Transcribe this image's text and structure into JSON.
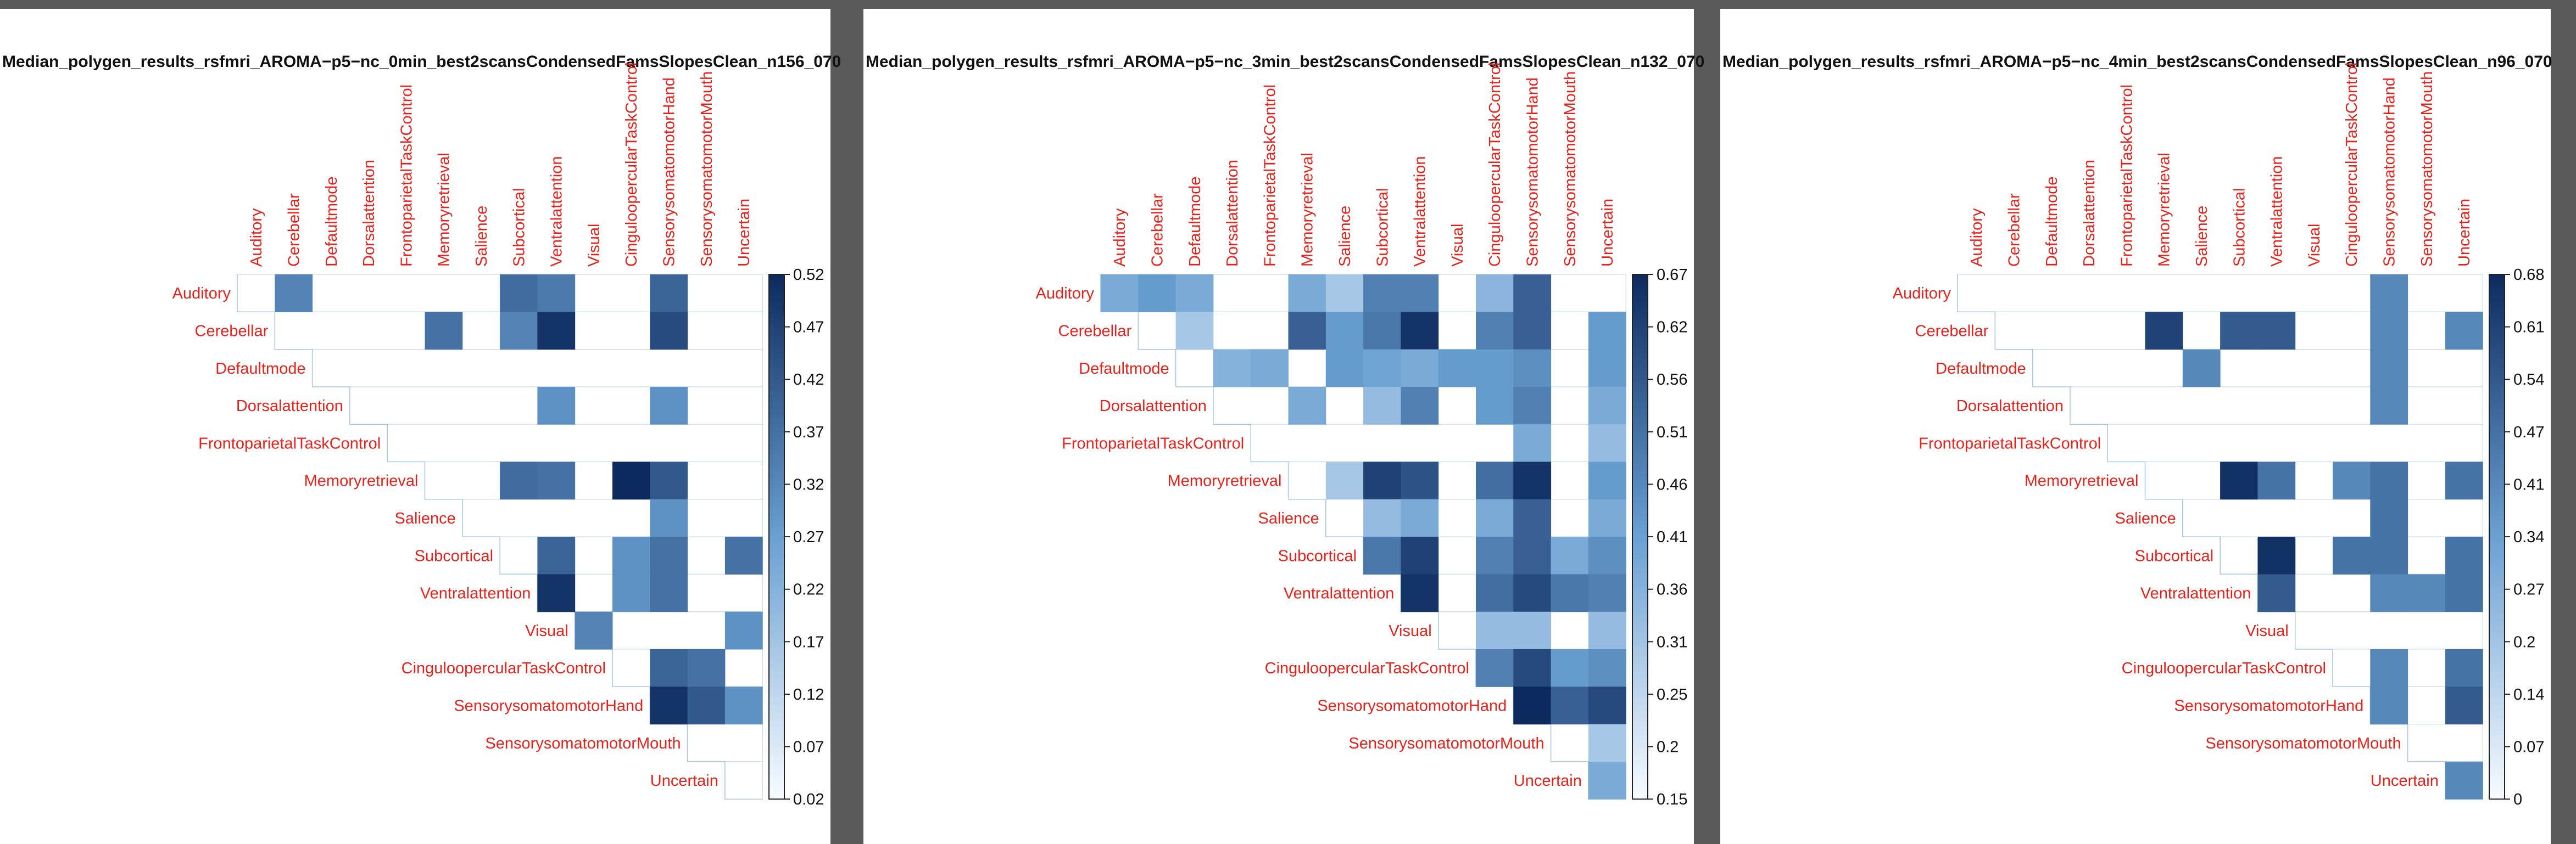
{
  "colors": {
    "label": "#e8221b",
    "low": "#ffffff",
    "high": "#0d2a5e",
    "grid": "#c9dcee"
  },
  "chart_data": [
    {
      "type": "heatmap",
      "title": "Median_polygen_results_rsfmri_AROMA−p5−nc_0min_best2scansCondensedFamsSlopesClean_n156_070",
      "labels": [
        "Auditory",
        "Cerebellar",
        "Defaultmode",
        "Dorsalattention",
        "FrontoparietalTaskControl",
        "Memoryretrieval",
        "Salience",
        "Subcortical",
        "Ventralattention",
        "Visual",
        "CinguloopercularTaskControl",
        "SensorysomatomotorHand",
        "SensorysomatomotorMouth",
        "Uncertain"
      ],
      "layout": "upper-triangle",
      "colorbar_ticks": [
        "0.52",
        "0.47",
        "0.42",
        "0.37",
        "0.32",
        "0.27",
        "0.22",
        "0.17",
        "0.12",
        "0.07",
        "0.02"
      ],
      "vmin": 0.02,
      "vmax": 0.52,
      "cells": [
        {
          "row": "Auditory",
          "col": "Cerebellar",
          "value": 0.33
        },
        {
          "row": "Auditory",
          "col": "Subcortical",
          "value": 0.38
        },
        {
          "row": "Auditory",
          "col": "Ventralattention",
          "value": 0.35
        },
        {
          "row": "Auditory",
          "col": "SensorysomatomotorHand",
          "value": 0.4
        },
        {
          "row": "Cerebellar",
          "col": "Memoryretrieval",
          "value": 0.37
        },
        {
          "row": "Cerebellar",
          "col": "Subcortical",
          "value": 0.33
        },
        {
          "row": "Cerebellar",
          "col": "Ventralattention",
          "value": 0.5
        },
        {
          "row": "Cerebellar",
          "col": "SensorysomatomotorHand",
          "value": 0.45
        },
        {
          "row": "Dorsalattention",
          "col": "Ventralattention",
          "value": 0.3
        },
        {
          "row": "Dorsalattention",
          "col": "SensorysomatomotorHand",
          "value": 0.3
        },
        {
          "row": "Memoryretrieval",
          "col": "Subcortical",
          "value": 0.38
        },
        {
          "row": "Memoryretrieval",
          "col": "Ventralattention",
          "value": 0.37
        },
        {
          "row": "Memoryretrieval",
          "col": "CinguloopercularTaskControl",
          "value": 0.52
        },
        {
          "row": "Memoryretrieval",
          "col": "SensorysomatomotorHand",
          "value": 0.42
        },
        {
          "row": "Salience",
          "col": "SensorysomatomotorHand",
          "value": 0.3
        },
        {
          "row": "Subcortical",
          "col": "Ventralattention",
          "value": 0.4
        },
        {
          "row": "Subcortical",
          "col": "CinguloopercularTaskControl",
          "value": 0.3
        },
        {
          "row": "Subcortical",
          "col": "SensorysomatomotorHand",
          "value": 0.37
        },
        {
          "row": "Subcortical",
          "col": "Uncertain",
          "value": 0.37
        },
        {
          "row": "Ventralattention",
          "col": "Ventralattention",
          "value": 0.5
        },
        {
          "row": "Ventralattention",
          "col": "CinguloopercularTaskControl",
          "value": 0.3
        },
        {
          "row": "Ventralattention",
          "col": "SensorysomatomotorHand",
          "value": 0.37
        },
        {
          "row": "Visual",
          "col": "Visual",
          "value": 0.33
        },
        {
          "row": "Visual",
          "col": "Uncertain",
          "value": 0.3
        },
        {
          "row": "CinguloopercularTaskControl",
          "col": "SensorysomatomotorHand",
          "value": 0.4
        },
        {
          "row": "CinguloopercularTaskControl",
          "col": "SensorysomatomotorMouth",
          "value": 0.37
        },
        {
          "row": "SensorysomatomotorHand",
          "col": "SensorysomatomotorHand",
          "value": 0.5
        },
        {
          "row": "SensorysomatomotorHand",
          "col": "SensorysomatomotorMouth",
          "value": 0.42
        },
        {
          "row": "SensorysomatomotorHand",
          "col": "Uncertain",
          "value": 0.3
        }
      ]
    },
    {
      "type": "heatmap",
      "title": "Median_polygen_results_rsfmri_AROMA−p5−nc_3min_best2scansCondensedFamsSlopesClean_n132_070",
      "labels": [
        "Auditory",
        "Cerebellar",
        "Defaultmode",
        "Dorsalattention",
        "FrontoparietalTaskControl",
        "Memoryretrieval",
        "Salience",
        "Subcortical",
        "Ventralattention",
        "Visual",
        "CinguloopercularTaskControl",
        "SensorysomatomotorHand",
        "SensorysomatomotorMouth",
        "Uncertain"
      ],
      "layout": "upper-triangle",
      "colorbar_ticks": [
        "0.67",
        "0.62",
        "0.56",
        "0.51",
        "0.46",
        "0.41",
        "0.36",
        "0.31",
        "0.25",
        "0.2",
        "0.15"
      ],
      "vmin": 0.15,
      "vmax": 0.67,
      "cells": [
        {
          "row": "Auditory",
          "col": "Auditory",
          "value": 0.38
        },
        {
          "row": "Auditory",
          "col": "Cerebellar",
          "value": 0.42
        },
        {
          "row": "Auditory",
          "col": "Defaultmode",
          "value": 0.38
        },
        {
          "row": "Auditory",
          "col": "Memoryretrieval",
          "value": 0.38
        },
        {
          "row": "Auditory",
          "col": "Salience",
          "value": 0.3
        },
        {
          "row": "Auditory",
          "col": "Subcortical",
          "value": 0.48
        },
        {
          "row": "Auditory",
          "col": "Ventralattention",
          "value": 0.48
        },
        {
          "row": "Auditory",
          "col": "CinguloopercularTaskControl",
          "value": 0.35
        },
        {
          "row": "Auditory",
          "col": "SensorysomatomotorHand",
          "value": 0.55
        },
        {
          "row": "Cerebellar",
          "col": "Defaultmode",
          "value": 0.3
        },
        {
          "row": "Cerebellar",
          "col": "Memoryretrieval",
          "value": 0.55
        },
        {
          "row": "Cerebellar",
          "col": "Salience",
          "value": 0.42
        },
        {
          "row": "Cerebellar",
          "col": "Subcortical",
          "value": 0.5
        },
        {
          "row": "Cerebellar",
          "col": "Ventralattention",
          "value": 0.65
        },
        {
          "row": "Cerebellar",
          "col": "CinguloopercularTaskControl",
          "value": 0.48
        },
        {
          "row": "Cerebellar",
          "col": "SensorysomatomotorHand",
          "value": 0.55
        },
        {
          "row": "Cerebellar",
          "col": "Uncertain",
          "value": 0.42
        },
        {
          "row": "Defaultmode",
          "col": "Dorsalattention",
          "value": 0.36
        },
        {
          "row": "Defaultmode",
          "col": "FrontoparietalTaskControl",
          "value": 0.38
        },
        {
          "row": "Defaultmode",
          "col": "Salience",
          "value": 0.42
        },
        {
          "row": "Defaultmode",
          "col": "Subcortical",
          "value": 0.4
        },
        {
          "row": "Defaultmode",
          "col": "Ventralattention",
          "value": 0.38
        },
        {
          "row": "Defaultmode",
          "col": "Visual",
          "value": 0.42
        },
        {
          "row": "Defaultmode",
          "col": "CinguloopercularTaskControl",
          "value": 0.42
        },
        {
          "row": "Defaultmode",
          "col": "SensorysomatomotorHand",
          "value": 0.45
        },
        {
          "row": "Defaultmode",
          "col": "Uncertain",
          "value": 0.42
        },
        {
          "row": "Dorsalattention",
          "col": "Memoryretrieval",
          "value": 0.38
        },
        {
          "row": "Dorsalattention",
          "col": "Subcortical",
          "value": 0.33
        },
        {
          "row": "Dorsalattention",
          "col": "Ventralattention",
          "value": 0.48
        },
        {
          "row": "Dorsalattention",
          "col": "CinguloopercularTaskControl",
          "value": 0.42
        },
        {
          "row": "Dorsalattention",
          "col": "SensorysomatomotorHand",
          "value": 0.48
        },
        {
          "row": "Dorsalattention",
          "col": "Uncertain",
          "value": 0.38
        },
        {
          "row": "FrontoparietalTaskControl",
          "col": "SensorysomatomotorHand",
          "value": 0.38
        },
        {
          "row": "FrontoparietalTaskControl",
          "col": "Uncertain",
          "value": 0.33
        },
        {
          "row": "Memoryretrieval",
          "col": "Salience",
          "value": 0.3
        },
        {
          "row": "Memoryretrieval",
          "col": "Subcortical",
          "value": 0.62
        },
        {
          "row": "Memoryretrieval",
          "col": "Ventralattention",
          "value": 0.58
        },
        {
          "row": "Memoryretrieval",
          "col": "CinguloopercularTaskControl",
          "value": 0.52
        },
        {
          "row": "Memoryretrieval",
          "col": "SensorysomatomotorHand",
          "value": 0.65
        },
        {
          "row": "Memoryretrieval",
          "col": "Uncertain",
          "value": 0.42
        },
        {
          "row": "Salience",
          "col": "Subcortical",
          "value": 0.33
        },
        {
          "row": "Salience",
          "col": "Ventralattention",
          "value": 0.38
        },
        {
          "row": "Salience",
          "col": "CinguloopercularTaskControl",
          "value": 0.38
        },
        {
          "row": "Salience",
          "col": "SensorysomatomotorHand",
          "value": 0.55
        },
        {
          "row": "Salience",
          "col": "Uncertain",
          "value": 0.38
        },
        {
          "row": "Subcortical",
          "col": "Subcortical",
          "value": 0.5
        },
        {
          "row": "Subcortical",
          "col": "Ventralattention",
          "value": 0.62
        },
        {
          "row": "Subcortical",
          "col": "CinguloopercularTaskControl",
          "value": 0.48
        },
        {
          "row": "Subcortical",
          "col": "SensorysomatomotorHand",
          "value": 0.55
        },
        {
          "row": "Subcortical",
          "col": "SensorysomatomotorMouth",
          "value": 0.38
        },
        {
          "row": "Subcortical",
          "col": "Uncertain",
          "value": 0.45
        },
        {
          "row": "Ventralattention",
          "col": "Ventralattention",
          "value": 0.65
        },
        {
          "row": "Ventralattention",
          "col": "CinguloopercularTaskControl",
          "value": 0.52
        },
        {
          "row": "Ventralattention",
          "col": "SensorysomatomotorHand",
          "value": 0.6
        },
        {
          "row": "Ventralattention",
          "col": "SensorysomatomotorMouth",
          "value": 0.5
        },
        {
          "row": "Ventralattention",
          "col": "Uncertain",
          "value": 0.48
        },
        {
          "row": "Visual",
          "col": "CinguloopercularTaskControl",
          "value": 0.33
        },
        {
          "row": "Visual",
          "col": "SensorysomatomotorHand",
          "value": 0.33
        },
        {
          "row": "Visual",
          "col": "Uncertain",
          "value": 0.33
        },
        {
          "row": "CinguloopercularTaskControl",
          "col": "CinguloopercularTaskControl",
          "value": 0.48
        },
        {
          "row": "CinguloopercularTaskControl",
          "col": "SensorysomatomotorHand",
          "value": 0.6
        },
        {
          "row": "CinguloopercularTaskControl",
          "col": "SensorysomatomotorMouth",
          "value": 0.42
        },
        {
          "row": "CinguloopercularTaskControl",
          "col": "Uncertain",
          "value": 0.45
        },
        {
          "row": "SensorysomatomotorHand",
          "col": "SensorysomatomotorHand",
          "value": 0.67
        },
        {
          "row": "SensorysomatomotorHand",
          "col": "SensorysomatomotorMouth",
          "value": 0.55
        },
        {
          "row": "SensorysomatomotorHand",
          "col": "Uncertain",
          "value": 0.6
        },
        {
          "row": "SensorysomatomotorMouth",
          "col": "Uncertain",
          "value": 0.3
        },
        {
          "row": "Uncertain",
          "col": "Uncertain",
          "value": 0.38
        }
      ]
    },
    {
      "type": "heatmap",
      "title": "Median_polygen_results_rsfmri_AROMA−p5−nc_4min_best2scansCondensedFamsSlopesClean_n96_070",
      "labels": [
        "Auditory",
        "Cerebellar",
        "Defaultmode",
        "Dorsalattention",
        "FrontoparietalTaskControl",
        "Memoryretrieval",
        "Salience",
        "Subcortical",
        "Ventralattention",
        "Visual",
        "CinguloopercularTaskControl",
        "SensorysomatomotorHand",
        "SensorysomatomotorMouth",
        "Uncertain"
      ],
      "layout": "upper-triangle",
      "colorbar_ticks": [
        "0.68",
        "0.61",
        "0.54",
        "0.47",
        "0.41",
        "0.34",
        "0.27",
        "0.2",
        "0.14",
        "0.07",
        "0"
      ],
      "vmin": 0,
      "vmax": 0.68,
      "cells": [
        {
          "row": "Auditory",
          "col": "SensorysomatomotorHand",
          "value": 0.41
        },
        {
          "row": "Cerebellar",
          "col": "Memoryretrieval",
          "value": 0.61
        },
        {
          "row": "Cerebellar",
          "col": "Subcortical",
          "value": 0.54
        },
        {
          "row": "Cerebellar",
          "col": "Ventralattention",
          "value": 0.54
        },
        {
          "row": "Cerebellar",
          "col": "SensorysomatomotorHand",
          "value": 0.41
        },
        {
          "row": "Cerebellar",
          "col": "Uncertain",
          "value": 0.41
        },
        {
          "row": "Defaultmode",
          "col": "Salience",
          "value": 0.41
        },
        {
          "row": "Defaultmode",
          "col": "SensorysomatomotorHand",
          "value": 0.41
        },
        {
          "row": "Dorsalattention",
          "col": "SensorysomatomotorHand",
          "value": 0.41
        },
        {
          "row": "Memoryretrieval",
          "col": "Subcortical",
          "value": 0.66
        },
        {
          "row": "Memoryretrieval",
          "col": "Ventralattention",
          "value": 0.47
        },
        {
          "row": "Memoryretrieval",
          "col": "CinguloopercularTaskControl",
          "value": 0.41
        },
        {
          "row": "Memoryretrieval",
          "col": "SensorysomatomotorHand",
          "value": 0.47
        },
        {
          "row": "Memoryretrieval",
          "col": "Uncertain",
          "value": 0.47
        },
        {
          "row": "Salience",
          "col": "SensorysomatomotorHand",
          "value": 0.47
        },
        {
          "row": "Subcortical",
          "col": "Ventralattention",
          "value": 0.66
        },
        {
          "row": "Subcortical",
          "col": "CinguloopercularTaskControl",
          "value": 0.47
        },
        {
          "row": "Subcortical",
          "col": "SensorysomatomotorHand",
          "value": 0.47
        },
        {
          "row": "Subcortical",
          "col": "Uncertain",
          "value": 0.47
        },
        {
          "row": "Ventralattention",
          "col": "Ventralattention",
          "value": 0.54
        },
        {
          "row": "Ventralattention",
          "col": "SensorysomatomotorHand",
          "value": 0.41
        },
        {
          "row": "Ventralattention",
          "col": "SensorysomatomotorMouth",
          "value": 0.41
        },
        {
          "row": "Ventralattention",
          "col": "Uncertain",
          "value": 0.47
        },
        {
          "row": "CinguloopercularTaskControl",
          "col": "SensorysomatomotorHand",
          "value": 0.41
        },
        {
          "row": "CinguloopercularTaskControl",
          "col": "Uncertain",
          "value": 0.47
        },
        {
          "row": "SensorysomatomotorHand",
          "col": "SensorysomatomotorHand",
          "value": 0.41
        },
        {
          "row": "SensorysomatomotorHand",
          "col": "Uncertain",
          "value": 0.54
        },
        {
          "row": "Uncertain",
          "col": "Uncertain",
          "value": 0.41
        }
      ]
    }
  ]
}
